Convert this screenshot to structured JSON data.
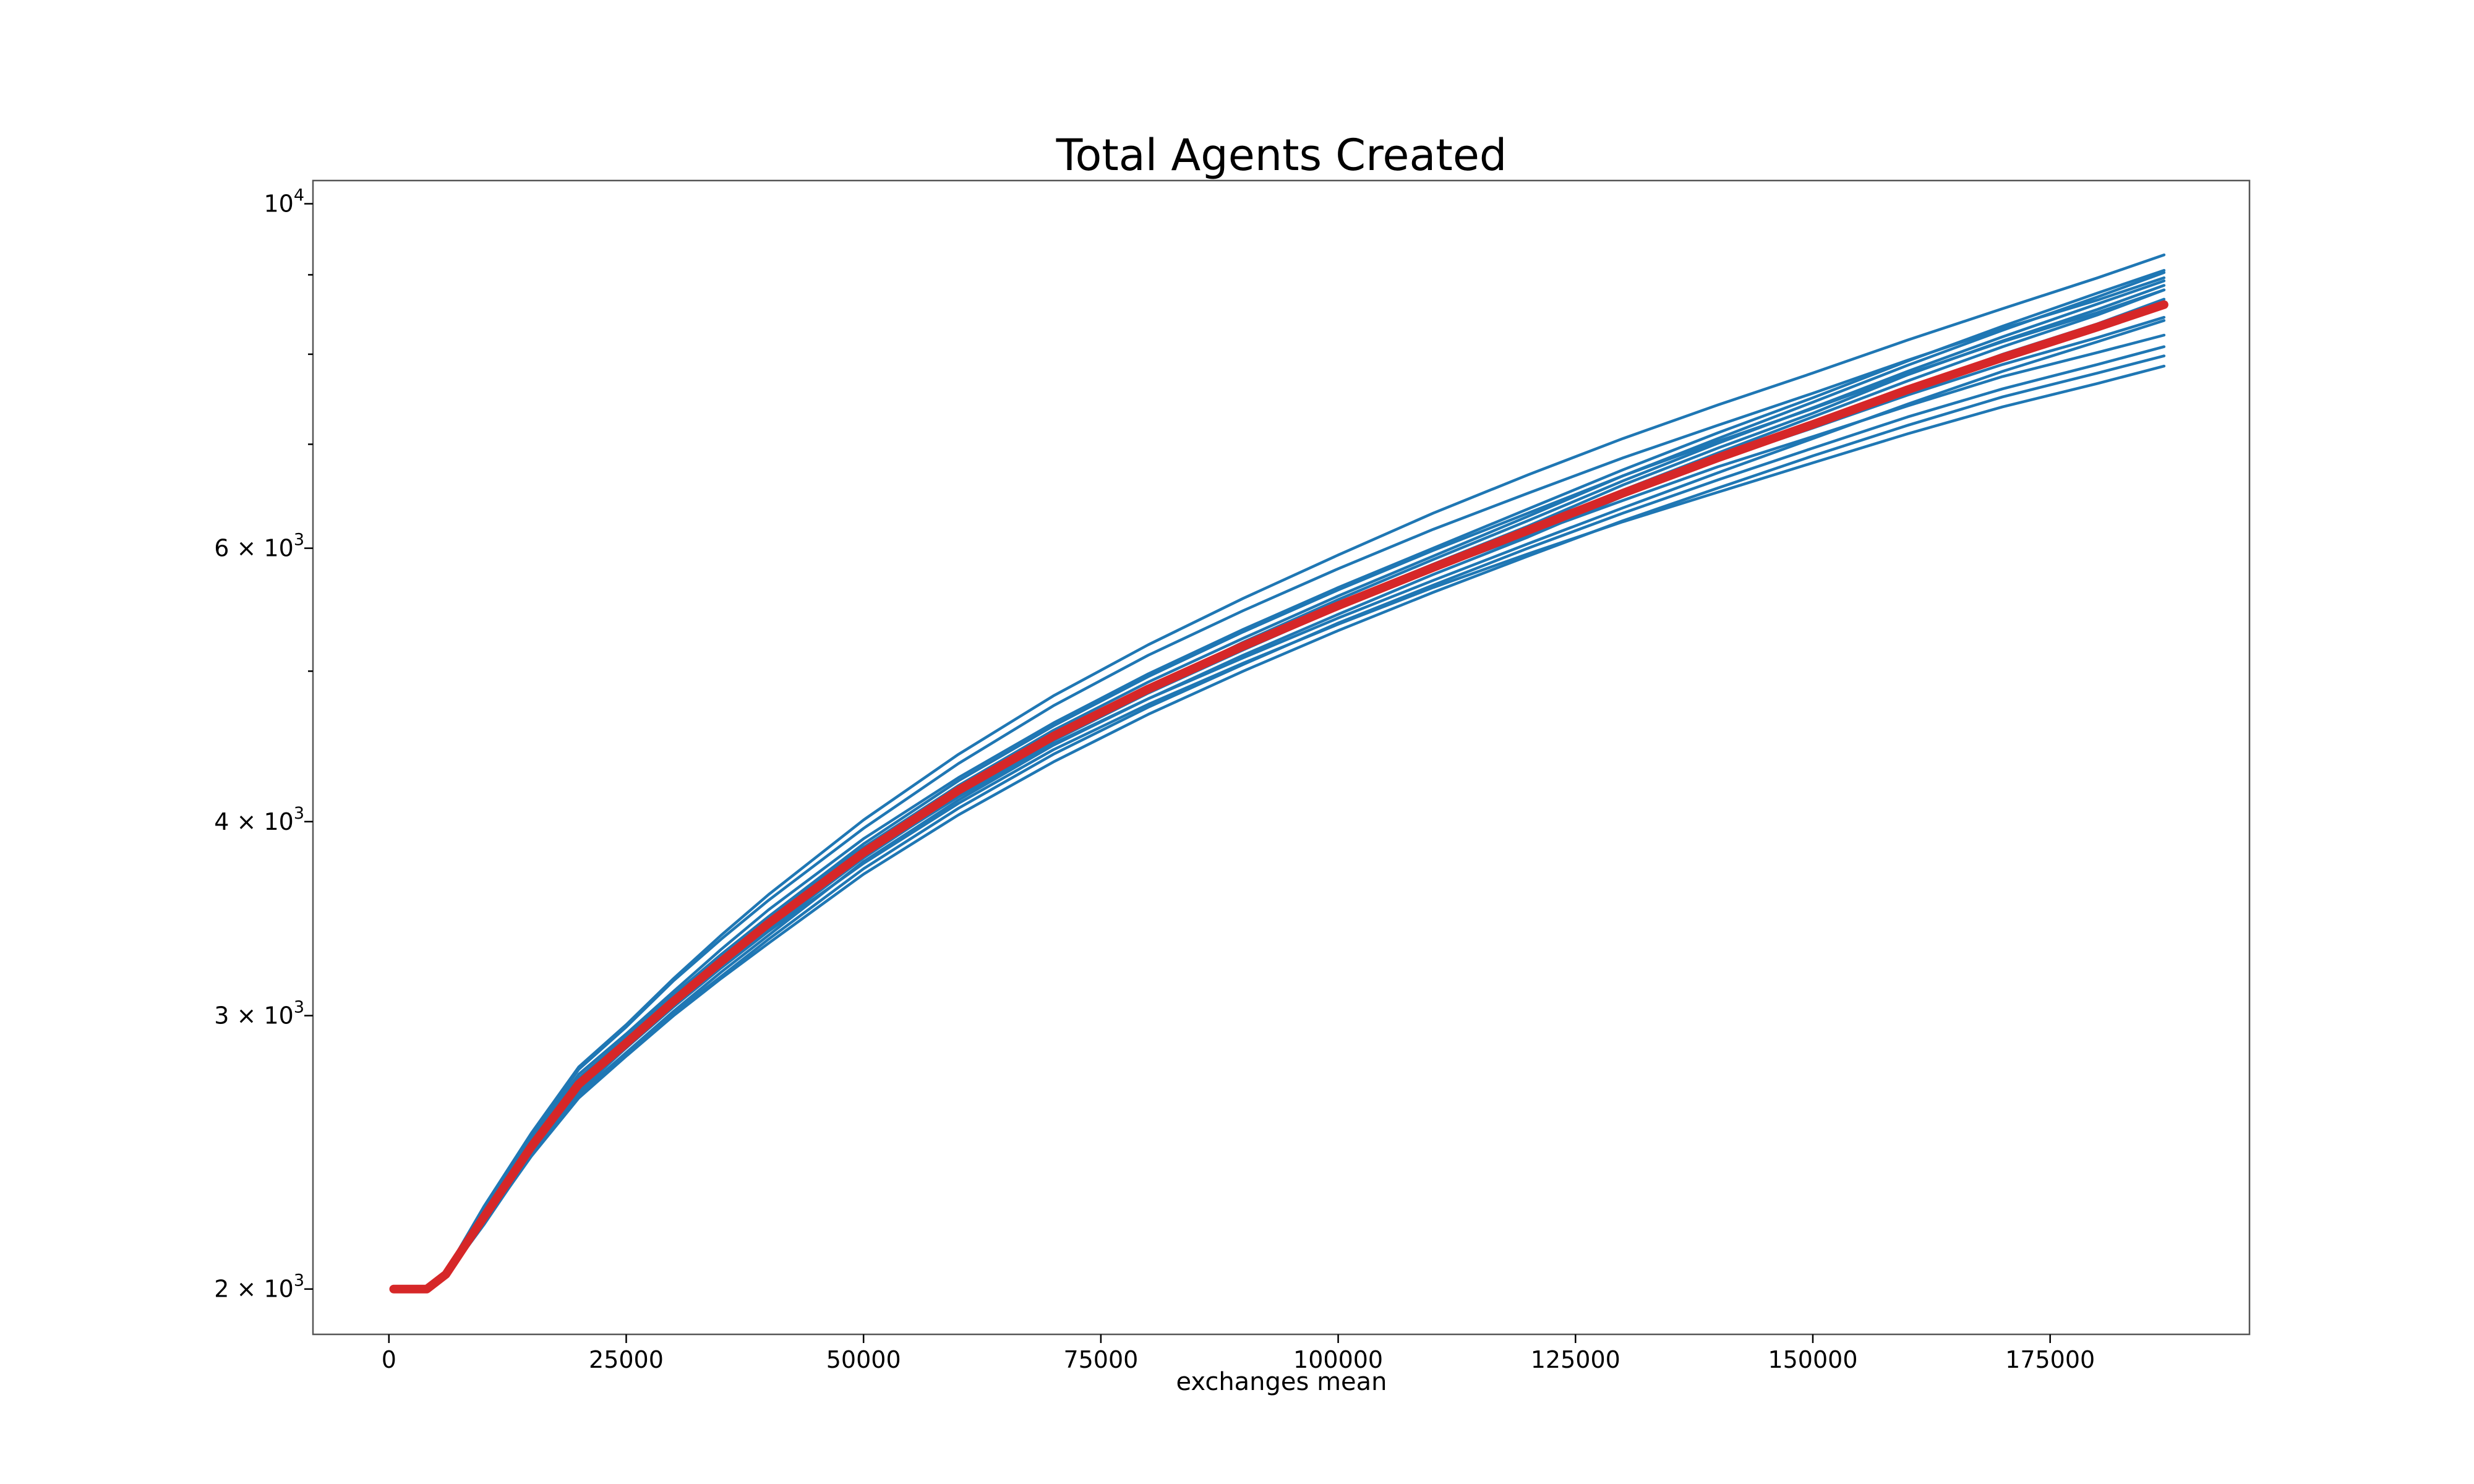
{
  "chart_data": {
    "type": "line",
    "title": "Total Agents Created",
    "xlabel": "exchanges mean",
    "ylabel": "",
    "yscale": "log",
    "xlim": [
      -8000,
      196000
    ],
    "ylim": [
      1870,
      10350
    ],
    "x_ticks": [
      {
        "value": 0,
        "label": "0"
      },
      {
        "value": 25000,
        "label": "25000"
      },
      {
        "value": 50000,
        "label": "50000"
      },
      {
        "value": 75000,
        "label": "75000"
      },
      {
        "value": 100000,
        "label": "100000"
      },
      {
        "value": 125000,
        "label": "125000"
      },
      {
        "value": 150000,
        "label": "150000"
      },
      {
        "value": 175000,
        "label": "175000"
      }
    ],
    "y_ticks": [
      {
        "value": 2000,
        "base": "2 × 10",
        "exp": "3"
      },
      {
        "value": 3000,
        "base": "3 × 10",
        "exp": "3"
      },
      {
        "value": 4000,
        "base": "4 × 10",
        "exp": "3"
      },
      {
        "value": 6000,
        "base": "6 × 10",
        "exp": "3"
      },
      {
        "value": 10000,
        "base": "10",
        "exp": "4"
      }
    ],
    "y_minor_ticks": [
      5000,
      7000,
      8000,
      9000
    ],
    "grid": false,
    "legend": "none",
    "colors": {
      "runs": "#1f77b4",
      "mean": "#d62728"
    },
    "runs": {
      "x": [
        500,
        4000,
        6000,
        10000,
        15000,
        20000,
        25000,
        30000,
        35000,
        40000,
        50000,
        60000,
        70000,
        80000,
        90000,
        100000,
        110000,
        120000,
        130000,
        140000,
        150000,
        160000,
        170000,
        180000,
        187000
      ],
      "series": [
        {
          "values": [
            2000,
            2000,
            2045,
            2230,
            2480,
            2720,
            2900,
            3090,
            3280,
            3470,
            3850,
            4220,
            4580,
            4920,
            5250,
            5590,
            5930,
            6290,
            6680,
            7060,
            7450,
            7870,
            8290,
            8710,
            9030
          ]
        },
        {
          "values": [
            2000,
            2000,
            2042,
            2220,
            2460,
            2700,
            2880,
            3070,
            3250,
            3440,
            3830,
            4190,
            4540,
            4870,
            5200,
            5530,
            5860,
            6200,
            6590,
            6960,
            7330,
            7760,
            8160,
            8550,
            8860
          ]
        },
        {
          "values": [
            2000,
            2000,
            2040,
            2210,
            2450,
            2680,
            2860,
            3040,
            3230,
            3410,
            3800,
            4160,
            4510,
            4840,
            5160,
            5490,
            5820,
            6160,
            6540,
            6910,
            7290,
            7690,
            8090,
            8480,
            8800
          ]
        },
        {
          "values": [
            2000,
            2000,
            2048,
            2240,
            2500,
            2750,
            2920,
            3110,
            3310,
            3510,
            3900,
            4270,
            4630,
            4980,
            5320,
            5660,
            6000,
            6360,
            6740,
            7120,
            7500,
            7920,
            8340,
            8760,
            9060
          ]
        },
        {
          "values": [
            2000,
            2000,
            2038,
            2200,
            2440,
            2670,
            2840,
            3020,
            3200,
            3380,
            3770,
            4130,
            4480,
            4800,
            5120,
            5440,
            5770,
            6100,
            6480,
            6840,
            7210,
            7600,
            8000,
            8370,
            8680
          ]
        },
        {
          "values": [
            2000,
            2000,
            2045,
            2230,
            2470,
            2710,
            2890,
            3080,
            3260,
            3450,
            3820,
            4180,
            4530,
            4860,
            5180,
            5490,
            5810,
            6120,
            6440,
            6770,
            7080,
            7410,
            7740,
            8020,
            8230
          ]
        },
        {
          "values": [
            2000,
            2000,
            2040,
            2210,
            2440,
            2660,
            2830,
            3010,
            3180,
            3360,
            3730,
            4080,
            4420,
            4740,
            5050,
            5370,
            5680,
            6000,
            6320,
            6640,
            6960,
            7290,
            7600,
            7880,
            8090
          ]
        },
        {
          "values": [
            2000,
            2000,
            2040,
            2215,
            2450,
            2690,
            2860,
            3040,
            3220,
            3400,
            3760,
            4110,
            4450,
            4760,
            5060,
            5360,
            5660,
            5950,
            6240,
            6520,
            6810,
            7110,
            7400,
            7660,
            7860
          ]
        },
        {
          "values": [
            2000,
            2000,
            2050,
            2250,
            2510,
            2770,
            2950,
            3160,
            3360,
            3560,
            3960,
            4360,
            4750,
            5120,
            5470,
            5820,
            6170,
            6510,
            6860,
            7200,
            7550,
            7930,
            8310,
            8670,
            8960
          ]
        },
        {
          "values": [
            2000,
            2000,
            2052,
            2260,
            2520,
            2780,
            2960,
            3170,
            3380,
            3590,
            4010,
            4420,
            4820,
            5200,
            5570,
            5940,
            6320,
            6690,
            7060,
            7420,
            7780,
            8170,
            8560,
            8960,
            9270
          ]
        },
        {
          "values": [
            2000,
            2000,
            2042,
            2220,
            2460,
            2690,
            2860,
            3050,
            3230,
            3410,
            3790,
            4160,
            4520,
            4870,
            5220,
            5560,
            5900,
            6250,
            6630,
            7010,
            7390,
            7800,
            8210,
            8620,
            8920
          ]
        },
        {
          "values": [
            2000,
            2000,
            2045,
            2225,
            2465,
            2705,
            2875,
            3060,
            3245,
            3430,
            3800,
            4150,
            4490,
            4800,
            5100,
            5410,
            5720,
            6040,
            6370,
            6710,
            7060,
            7430,
            7800,
            8150,
            8410
          ]
        },
        {
          "values": [
            2000,
            2000,
            2040,
            2205,
            2435,
            2655,
            2825,
            3000,
            3170,
            3340,
            3700,
            4040,
            4370,
            4690,
            5000,
            5310,
            5620,
            5930,
            6250,
            6560,
            6880,
            7200,
            7510,
            7780,
            7980
          ]
        },
        {
          "values": [
            2000,
            2000,
            2043,
            2218,
            2458,
            2698,
            2868,
            3052,
            3235,
            3418,
            3810,
            4180,
            4530,
            4870,
            5200,
            5520,
            5840,
            6170,
            6510,
            6840,
            7170,
            7530,
            7880,
            8200,
            8450
          ]
        },
        {
          "values": [
            2000,
            2000,
            2046,
            2235,
            2485,
            2735,
            2905,
            3095,
            3285,
            3475,
            3870,
            4250,
            4610,
            4960,
            5300,
            5640,
            5980,
            6320,
            6680,
            7030,
            7380,
            7770,
            8150,
            8510,
            8800
          ]
        }
      ]
    },
    "mean": {
      "x": [
        500,
        4000,
        6000,
        10000,
        15000,
        20000,
        25000,
        30000,
        35000,
        40000,
        50000,
        60000,
        70000,
        80000,
        90000,
        100000,
        110000,
        120000,
        130000,
        140000,
        150000,
        160000,
        170000,
        180000,
        187000
      ],
      "values": [
        2000,
        2000,
        2044,
        2225,
        2470,
        2710,
        2880,
        3065,
        3250,
        3440,
        3820,
        4190,
        4540,
        4870,
        5190,
        5510,
        5830,
        6160,
        6510,
        6860,
        7210,
        7590,
        7960,
        8330,
        8610
      ]
    }
  }
}
